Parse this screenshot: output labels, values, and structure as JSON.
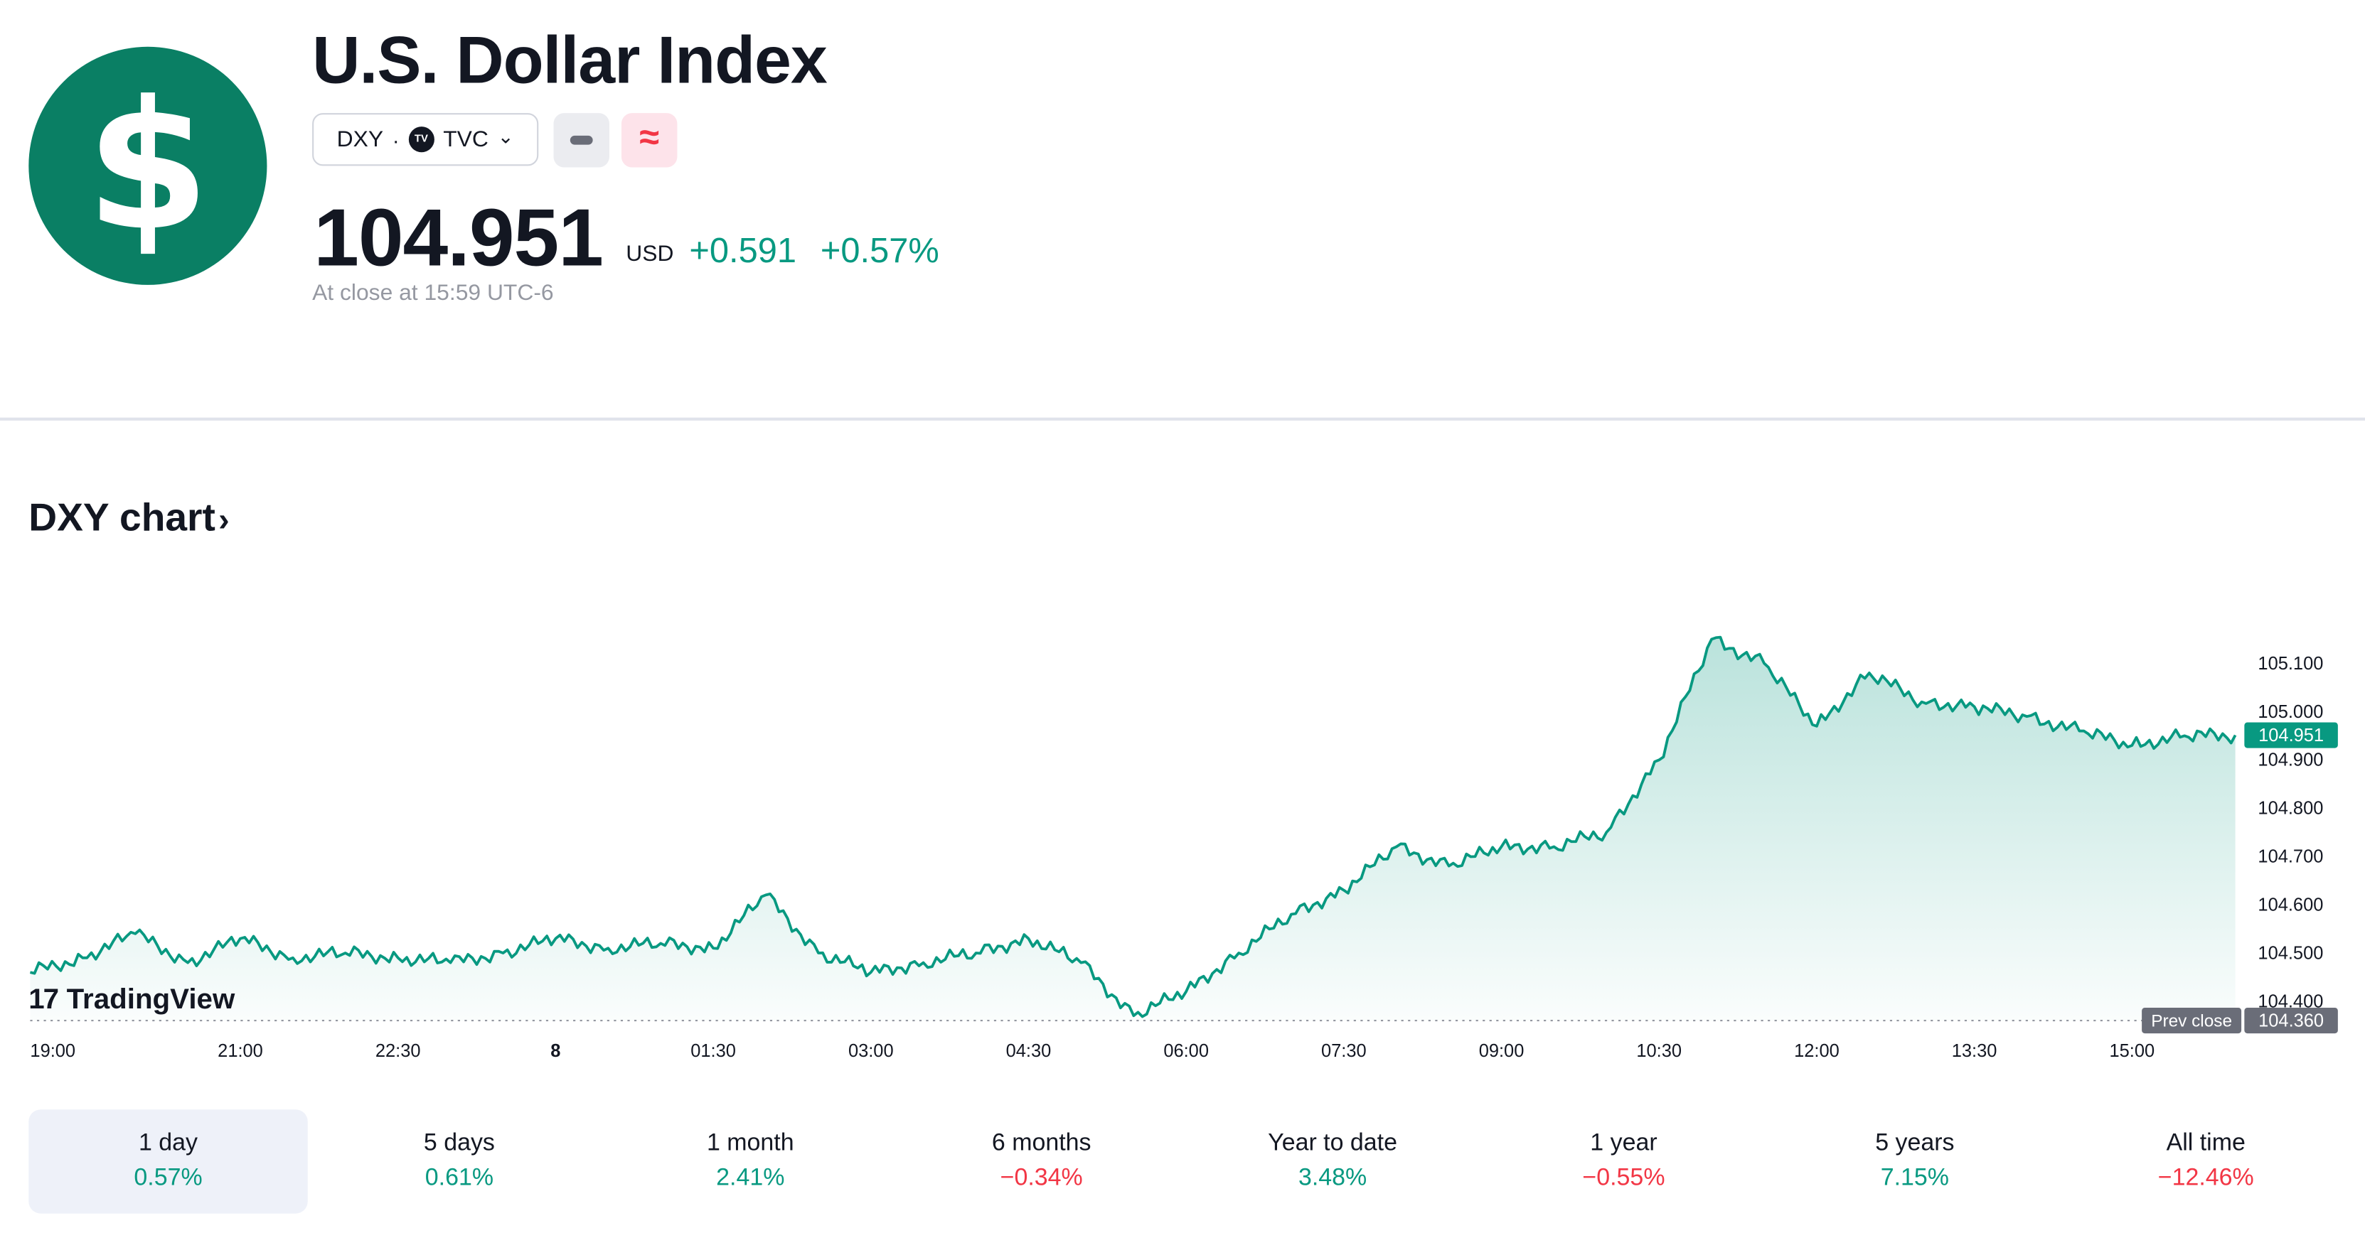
{
  "header": {
    "logo_glyph": "$",
    "title": "U.S. Dollar Index",
    "symbol": "DXY",
    "separator": "·",
    "exchange_icon": "TV",
    "exchange": "TVC",
    "dropdown_glyph": "⌄",
    "badge_glyph": "≈",
    "price": "104.951",
    "currency": "USD",
    "change_abs": "+0.591",
    "change_pct": "+0.57%",
    "close_time": "At close at 15:59 UTC-6"
  },
  "chart_section": {
    "title": "DXY chart",
    "title_arrow": "›",
    "brand_mark": "17",
    "brand": "TradingView"
  },
  "chart_data": {
    "type": "area",
    "x_ticks": [
      "19:00",
      "21:00",
      "22:30",
      "8",
      "01:30",
      "03:00",
      "04:30",
      "06:00",
      "07:30",
      "09:00",
      "10:30",
      "12:00",
      "13:30",
      "15:00"
    ],
    "y_ticks": [
      "105.100",
      "105.000",
      "104.900",
      "104.800",
      "104.700",
      "104.600",
      "104.500",
      "104.400"
    ],
    "ylim": [
      104.36,
      105.2
    ],
    "x": [
      "19:00",
      "19:30",
      "20:00",
      "20:30",
      "21:00",
      "21:30",
      "22:00",
      "22:30",
      "23:00",
      "23:30",
      "00:00",
      "00:30",
      "01:00",
      "01:30",
      "02:00",
      "02:30",
      "03:00",
      "03:30",
      "04:00",
      "04:30",
      "05:00",
      "05:30",
      "06:00",
      "06:30",
      "07:00",
      "07:30",
      "08:00",
      "08:30",
      "09:00",
      "09:30",
      "10:00",
      "10:30",
      "11:00",
      "11:30",
      "12:00",
      "12:30",
      "13:00",
      "13:30",
      "14:00",
      "14:30",
      "15:00",
      "15:30",
      "15:59"
    ],
    "series": [
      {
        "values": [
          104.46,
          104.49,
          104.54,
          104.48,
          104.53,
          104.49,
          104.5,
          104.49,
          104.48,
          104.5,
          104.53,
          104.51,
          104.52,
          104.51,
          104.62,
          104.5,
          104.46,
          104.48,
          104.5,
          104.53,
          104.48,
          104.37,
          104.42,
          104.5,
          104.58,
          104.63,
          104.72,
          104.68,
          104.72,
          104.72,
          104.75,
          104.9,
          105.15,
          105.1,
          104.97,
          105.08,
          105.02,
          105.01,
          104.99,
          104.96,
          104.93,
          104.95,
          104.951
        ]
      }
    ],
    "last_value": "104.951",
    "prev_close": 104.36,
    "prev_close_label": "Prev close",
    "prev_close_value": "104.360",
    "grid": false
  },
  "periods": [
    {
      "label": "1 day",
      "value": "0.57%",
      "positive": true,
      "active": true
    },
    {
      "label": "5 days",
      "value": "0.61%",
      "positive": true,
      "active": false
    },
    {
      "label": "1 month",
      "value": "2.41%",
      "positive": true,
      "active": false
    },
    {
      "label": "6 months",
      "value": "−0.34%",
      "positive": false,
      "active": false
    },
    {
      "label": "Year to date",
      "value": "3.48%",
      "positive": true,
      "active": false
    },
    {
      "label": "1 year",
      "value": "−0.55%",
      "positive": false,
      "active": false
    },
    {
      "label": "5 years",
      "value": "7.15%",
      "positive": true,
      "active": false
    },
    {
      "label": "All time",
      "value": "−12.46%",
      "positive": false,
      "active": false
    }
  ],
  "colors": {
    "brand_green": "#0a7f64",
    "line": "#089981",
    "positive": "#089981",
    "negative": "#f23645"
  }
}
